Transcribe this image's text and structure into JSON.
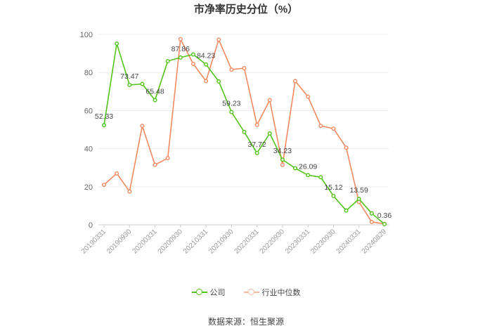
{
  "chart_data": {
    "type": "line",
    "title": "市净率历史分位（%）",
    "xlabel": "",
    "ylabel": "",
    "ylim": [
      0,
      100
    ],
    "yticks": [
      0,
      20,
      40,
      60,
      80,
      100
    ],
    "grid": true,
    "legend_position": "bottom",
    "x_tick_labels": [
      "20190331",
      "20190930",
      "20200331",
      "20200930",
      "20210331",
      "20210930",
      "20220331",
      "20220930",
      "20230331",
      "20230930",
      "20240331",
      "20240829"
    ],
    "series": [
      {
        "name": "公司",
        "color": "#52c41a",
        "values": [
          52.33,
          95.2,
          73.47,
          74.0,
          65.48,
          86.0,
          87.86,
          89.5,
          84.23,
          75.3,
          59.23,
          48.8,
          37.72,
          48.0,
          34.23,
          29.7,
          26.09,
          25.0,
          15.12,
          7.5,
          13.59,
          6.0,
          0.36
        ],
        "data_labels": [
          "52.33",
          "",
          "73.47",
          "",
          "65.48",
          "",
          "87.86",
          "",
          "84.23",
          "",
          "59.23",
          "",
          "37.72",
          "",
          "34.23",
          "",
          "26.09",
          "",
          "15.12",
          "",
          "13.59",
          "",
          "0.36"
        ]
      },
      {
        "name": "行业中位数",
        "color": "#f4895f",
        "values": [
          21.0,
          27.0,
          17.5,
          52.0,
          31.5,
          35.0,
          97.5,
          84.5,
          75.5,
          97.3,
          81.5,
          82.3,
          52.5,
          65.5,
          31.5,
          75.5,
          67.3,
          52.0,
          50.5,
          40.5,
          12.0,
          1.5,
          0.5
        ]
      }
    ]
  },
  "footer": {
    "source": "数据来源：恒生聚源"
  }
}
